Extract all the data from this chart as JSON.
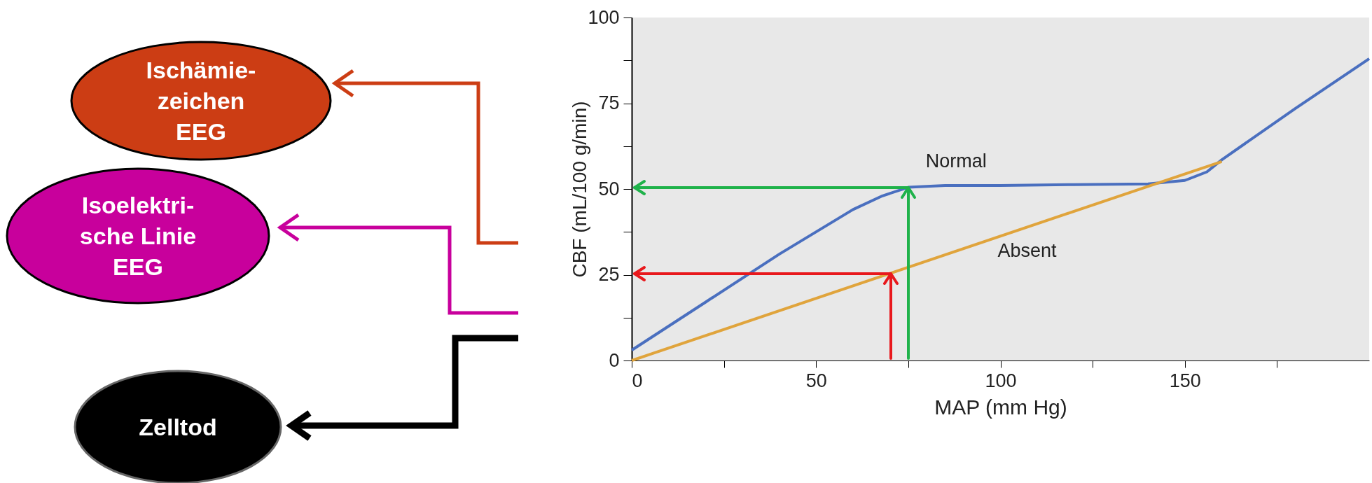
{
  "chart_data": {
    "type": "line",
    "xlabel": "MAP (mm Hg)",
    "ylabel": "CBF (mL/100 g/min)",
    "xlim": [
      0,
      200
    ],
    "ylim": [
      0,
      100
    ],
    "xticks": [
      0,
      {
        "value": 25,
        "label": null
      },
      50,
      {
        "value": 75,
        "label": null
      },
      100,
      {
        "value": 125,
        "label": null
      },
      150,
      {
        "value": 175,
        "label": null
      }
    ],
    "yticks": [
      0,
      {
        "value": 12.5,
        "label": null
      },
      25,
      {
        "value": 37.5,
        "label": null
      },
      50,
      {
        "value": 62.5,
        "label": null
      },
      75,
      {
        "value": 87.5,
        "label": null
      },
      100
    ],
    "grid": false,
    "marker": "none",
    "line_style": "solid",
    "series": [
      {
        "name": "Normal",
        "color": "#4a6fbf",
        "x": [
          0,
          20,
          40,
          60,
          68,
          75,
          85,
          100,
          120,
          140,
          150,
          156,
          160,
          180,
          200
        ],
        "values": [
          3,
          17,
          31,
          44,
          48,
          50.5,
          51,
          51,
          51.3,
          51.5,
          52.5,
          55,
          58.5,
          73.5,
          88
        ]
      },
      {
        "name": "Absent",
        "color": "#e0a43c",
        "x": [
          0,
          160
        ],
        "values": [
          0,
          58
        ]
      }
    ],
    "annotations": [
      "Ischämie-\nzeichen\nEEG",
      "Isoelektri-\nsche Linie\nEEG",
      "Zelltod"
    ]
  }
}
